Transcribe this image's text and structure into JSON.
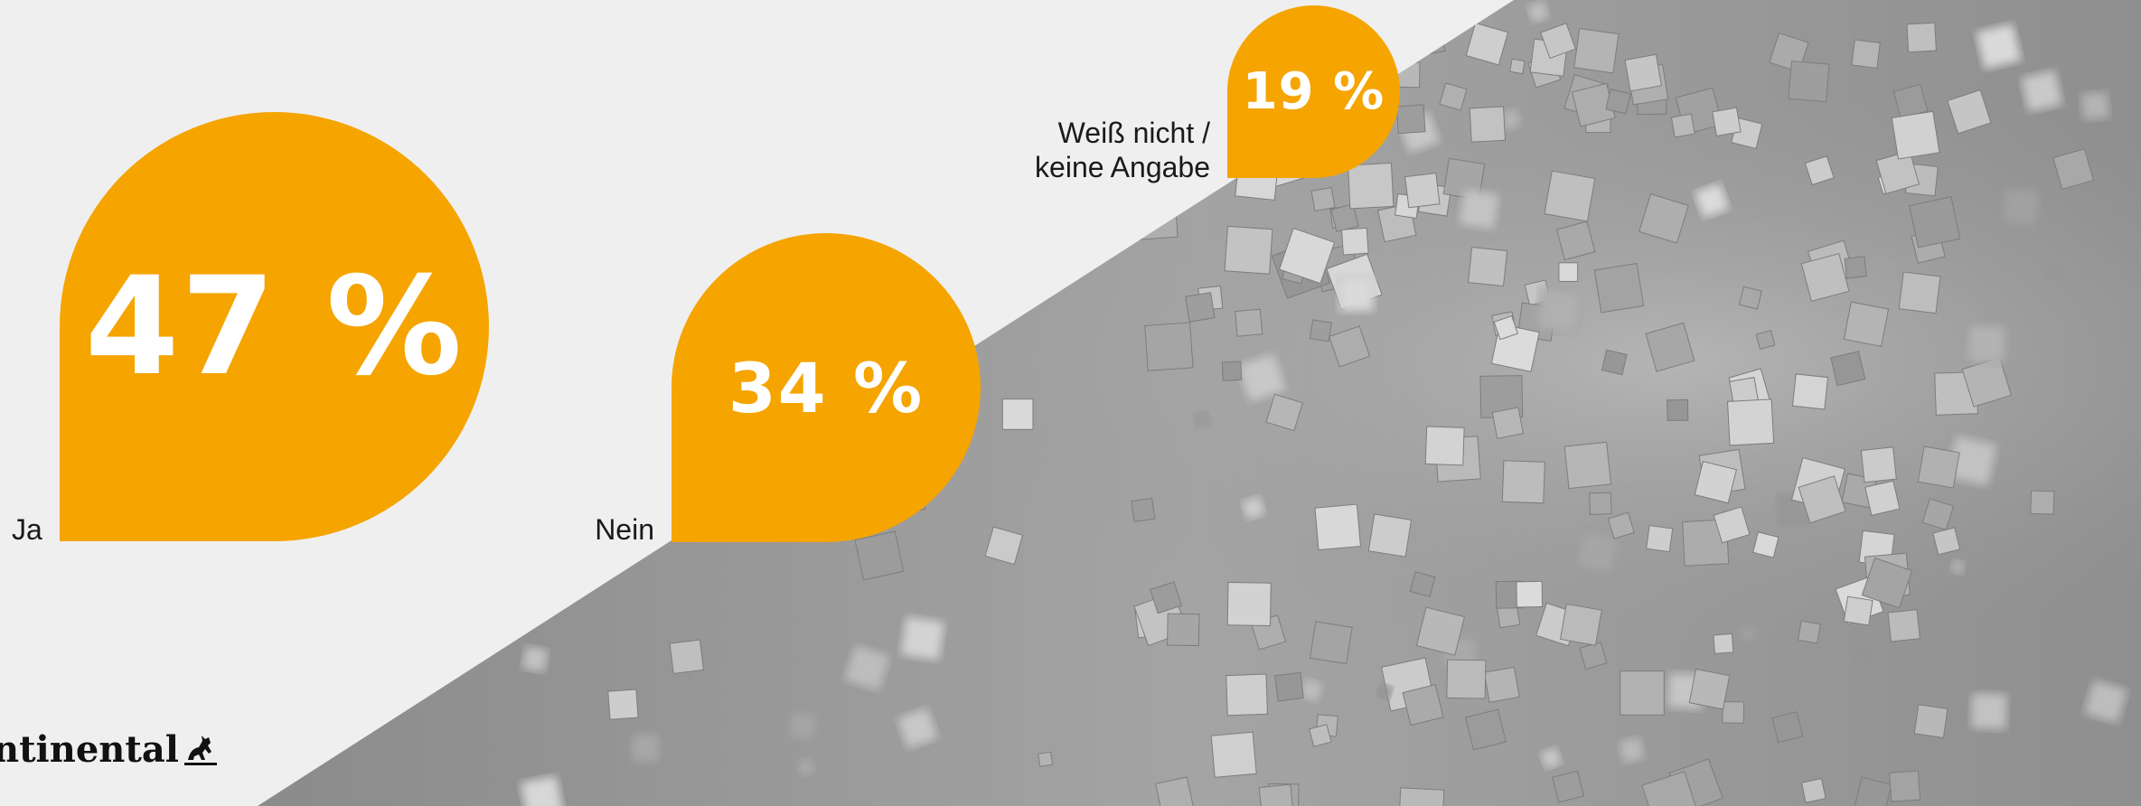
{
  "colors": {
    "accent": "#f5a400",
    "background": "#efefef",
    "image_gray": "#9a9a9a",
    "text": "#1a1a1a"
  },
  "chart_data": {
    "type": "bar",
    "title": "",
    "categories": [
      "Ja",
      "Nein",
      "Weiß nicht / keine Angabe"
    ],
    "values": [
      47,
      34,
      19
    ],
    "value_labels": [
      "47 %",
      "34 %",
      "19 %"
    ],
    "unit": "%",
    "category_lines": {
      "wn": [
        "Weiß nicht /",
        "keine Angabe"
      ]
    }
  },
  "brand": {
    "logo_text": "ntinental",
    "logo_icon": "horse-icon"
  }
}
